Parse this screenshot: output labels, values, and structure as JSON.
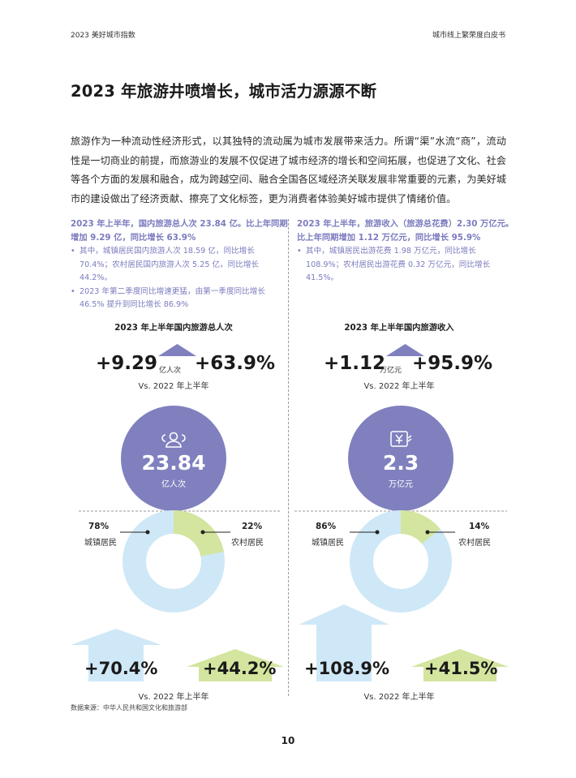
{
  "header": {
    "left": "2023 美好城市指数",
    "right": "城市线上繁荣度白皮书"
  },
  "title": "2023 年旅游井喷增长，城市活力源源不断",
  "intro": "旅游作为一种流动性经济形式，以其独特的流动属为城市发展带来活力。所谓“渠”水流“商”，流动性是一切商业的前提，而旅游业的发展不仅促进了城市经济的增长和空间拓展，也促进了文化、社会等各个方面的发展和融合，成为跨越空间、融合全国各区域经济关联发展非常重要的元素，为美好城市的建设做出了经济贡献、擦亮了文化标签，更为消费者体验美好城市提供了情绪价值。",
  "colors": {
    "accent": "#7b7bbf",
    "circle": "#8080bf",
    "light_blue": "#cfe8f7",
    "light_green": "#d3e59e"
  },
  "left": {
    "headline": "2023 年上半年，国内旅游总人次 23.84 亿。比上年同期增加 9.29 亿，同比增长 63.9%",
    "bullets": [
      "其中，城镇居民国内旅游人次 18.59 亿，同比增长 70.4%；农村居民国内旅游人次 5.25 亿，同比增长 44.2%。",
      "2023 年第二季度同比增速更猛，由第一季度同比增长 46.5% 提升到同比增长 86.9%"
    ],
    "chart_title": "2023 年上半年国内旅游总人次",
    "increase_value": "+9.29",
    "increase_unit": "亿人次",
    "growth_pct": "+63.9%",
    "vs_label": "Vs. 2022 年上半年",
    "icon": "people-icon",
    "total_value": "23.84",
    "total_unit": "亿人次",
    "urban_pct": "78%",
    "urban_label": "城镇居民",
    "rural_pct": "22%",
    "rural_label": "农村居民",
    "urban_share": 0.78,
    "rural_share": 0.22,
    "urban_growth": "+70.4%",
    "rural_growth": "+44.2%",
    "vs_label_bottom": "Vs. 2022 年上半年"
  },
  "right": {
    "headline": "2023 年上半年，旅游收入（旅游总花费）2.30 万亿元。比上年同期增加 1.12 万亿元，同比增长 95.9%",
    "bullets": [
      "其中，城镇居民出游花费 1.98 万亿元，同比增长 108.9%；农村居民出游花费 0.32 万亿元，同比增长 41.5%。"
    ],
    "chart_title": "2023 年上半年国内旅游收入",
    "increase_value": "+1.12",
    "increase_unit": "万亿元",
    "growth_pct": "+95.9%",
    "vs_label": "Vs. 2022 年上半年",
    "icon": "yuan-ticket-icon",
    "total_value": "2.3",
    "total_unit": "万亿元",
    "urban_pct": "86%",
    "urban_label": "城镇居民",
    "rural_pct": "14%",
    "rural_label": "农村居民",
    "urban_share": 0.86,
    "rural_share": 0.14,
    "urban_growth": "+108.9%",
    "rural_growth": "+41.5%",
    "vs_label_bottom": "Vs. 2022 年上半年"
  },
  "source": "数据来源：中华人民共和国文化和旅游部",
  "page_number": "10"
}
